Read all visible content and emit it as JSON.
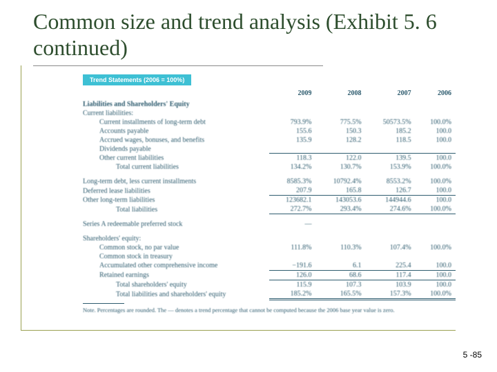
{
  "title": "Common size and trend analysis (Exhibit 5. 6 continued)",
  "banner": "Trend Statements (2006 = 100%)",
  "years": [
    "2009",
    "2008",
    "2007",
    "2006"
  ],
  "section_head": "Liabilities and Shareholders' Equity",
  "current_head": "Current liabilities:",
  "rows_current": [
    {
      "label": "Current installments of long-term debt",
      "v": [
        "793.9%",
        "775.5%",
        "50573.5%",
        "100.0%"
      ]
    },
    {
      "label": "Accounts payable",
      "v": [
        "155.6",
        "150.3",
        "185.2",
        "100.0"
      ]
    },
    {
      "label": "Accrued wages, bonuses, and benefits",
      "v": [
        "135.9",
        "128.2",
        "118.5",
        "100.0"
      ]
    },
    {
      "label": "Dividends payable",
      "v": [
        "",
        "",
        "",
        ""
      ]
    },
    {
      "label": "Other current liabilities",
      "v": [
        "118.3",
        "122.0",
        "139.5",
        "100.0"
      ],
      "ul": true
    },
    {
      "label": "Total current liabilities",
      "v": [
        "134.2%",
        "130.7%",
        "153.9%",
        "100.0%"
      ],
      "indent": 2
    }
  ],
  "rows_long": [
    {
      "label": "Long-term debt, less current installments",
      "v": [
        "8585.3%",
        "10792.4%",
        "8553.2%",
        "100.0%"
      ]
    },
    {
      "label": "Deferred lease liabilities",
      "v": [
        "207.9",
        "165.8",
        "126.7",
        "100.0"
      ]
    },
    {
      "label": "Other long-term liabilities",
      "v": [
        "123682.1",
        "143053.6",
        "144944.6",
        "100.0"
      ],
      "ul": true
    },
    {
      "label": "Total liabilities",
      "v": [
        "272.7%",
        "293.4%",
        "274.6%",
        "100.0%"
      ],
      "indent": 2,
      "ulb": true
    }
  ],
  "pref_label": "Series A redeemable preferred stock",
  "pref_val": "—",
  "equity_head": "Shareholders' equity:",
  "rows_equity": [
    {
      "label": "Common stock, no par value",
      "v": [
        "111.8%",
        "110.3%",
        "107.4%",
        "100.0%"
      ]
    },
    {
      "label": "Common stock in treasury",
      "v": [
        "",
        "",
        "",
        ""
      ]
    },
    {
      "label": "Accumulated other comprehensive income",
      "v": [
        "−191.6",
        "6.1",
        "225.4",
        "100.0"
      ]
    },
    {
      "label": "Retained earnings",
      "v": [
        "126.0",
        "68.6",
        "117.4",
        "100.0"
      ],
      "ul": true
    },
    {
      "label": "Total shareholders' equity",
      "v": [
        "115.9",
        "107.3",
        "103.9",
        "100.0"
      ],
      "indent": 2,
      "ul": true
    },
    {
      "label": "Total liabilities and shareholders' equity",
      "v": [
        "185.2%",
        "165.5%",
        "157.3%",
        "100.0%"
      ],
      "indent": 2,
      "dbl": true
    }
  ],
  "note": "Note. Percentages are rounded. The — denotes a trend percentage that cannot be computed because the 2006 base year value is zero.",
  "pagenum": "5 -85",
  "colors": {
    "frame": "#99a050",
    "title": "#2d4d2d",
    "banner_bg": "#3ec0d4",
    "text": "#2d5b6e"
  }
}
